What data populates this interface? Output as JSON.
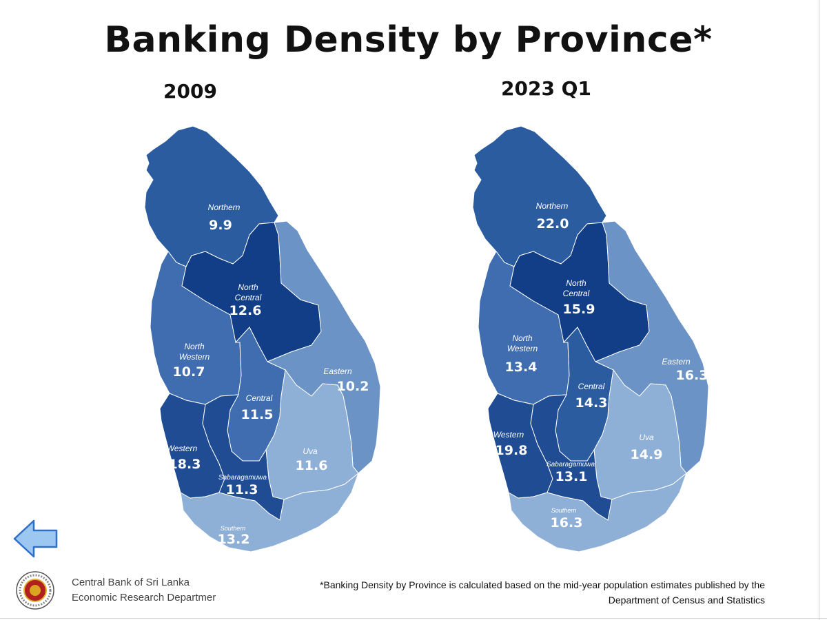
{
  "title": "Banking Density by Province*",
  "colors": {
    "outline": "#2e5f9e",
    "level_1": "#8fb0d6",
    "level_2": "#6b93c6",
    "level_3": "#3f6daf",
    "level_4": "#2b5c9f",
    "level_5": "#1f4c92",
    "level_6": "#123e87"
  },
  "maps": [
    {
      "subtitle": "2009",
      "provinces": {
        "northern": {
          "name": "Northern",
          "value": "9.9"
        },
        "north_central": {
          "name_line1": "North",
          "name_line2": "Central",
          "value": "12.6"
        },
        "north_western": {
          "name_line1": "North",
          "name_line2": "Western",
          "value": "10.7"
        },
        "eastern": {
          "name": "Eastern",
          "value": "10.2"
        },
        "central": {
          "name": "Central",
          "value": "11.5"
        },
        "western": {
          "name": "Western",
          "value": "18.3"
        },
        "uva": {
          "name": "Uva",
          "value": "11.6"
        },
        "sabaragamuwa": {
          "name": "Sabaragamuwa",
          "value": "11.3"
        },
        "southern": {
          "name": "Southern",
          "value": "13.2"
        }
      }
    },
    {
      "subtitle": "2023 Q1",
      "provinces": {
        "northern": {
          "name": "Northern",
          "value": "22.0"
        },
        "north_central": {
          "name_line1": "North",
          "name_line2": "Central",
          "value": "15.9"
        },
        "north_western": {
          "name_line1": "North",
          "name_line2": "Western",
          "value": "13.4"
        },
        "eastern": {
          "name": "Eastern",
          "value": "16.3"
        },
        "central": {
          "name": "Central",
          "value": "14.3"
        },
        "western": {
          "name": "Western",
          "value": "19.8"
        },
        "uva": {
          "name": "Uva",
          "value": "14.9"
        },
        "sabaragamuwa": {
          "name": "Sabaragamuwa",
          "value": "13.1"
        },
        "southern": {
          "name": "Southern",
          "value": "16.3"
        }
      }
    }
  ],
  "footer": {
    "org_line1": "Central Bank of Sri Lanka",
    "org_line2": "Economic Research Departmer",
    "footnote_line1": "*Banking Density by Province is calculated based on the mid-year population estimates published by the",
    "footnote_line2": "Department of Census and Statistics"
  },
  "icons": {
    "back": "left-arrow-icon",
    "logo": "central-bank-seal-icon"
  }
}
